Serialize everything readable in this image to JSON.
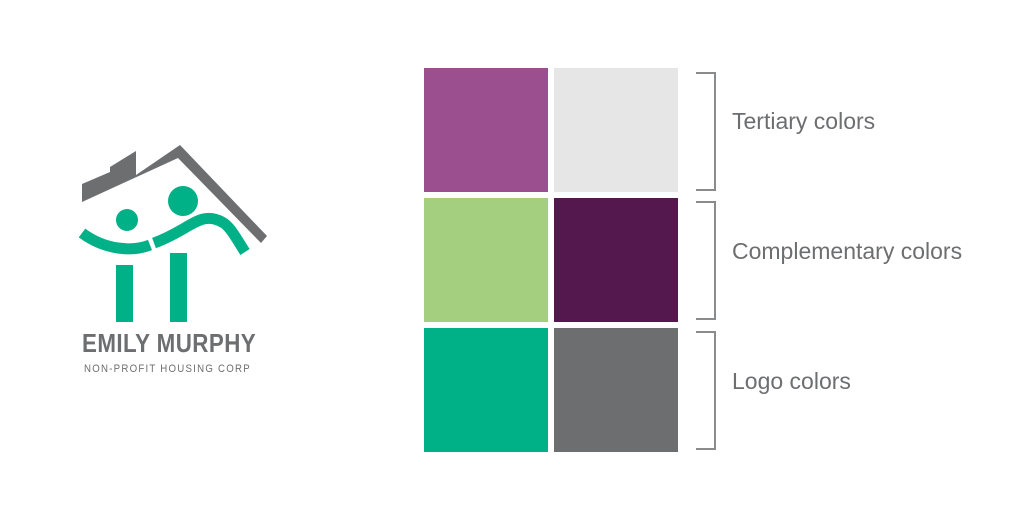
{
  "logo": {
    "name": "EMILY MURPHY",
    "tagline": "NON-PROFIT HOUSING CORP",
    "primary_color": "#00b188",
    "secondary_color": "#6d6e70"
  },
  "palette": {
    "groups": [
      {
        "label": "Tertiary colors",
        "colors": [
          "#9b4f8f",
          "#e6e6e6"
        ]
      },
      {
        "label": "Complementary colors",
        "colors": [
          "#a3cf7f",
          "#55184e"
        ]
      },
      {
        "label": "Logo colors",
        "colors": [
          "#00b188",
          "#6d6e70"
        ]
      }
    ]
  }
}
